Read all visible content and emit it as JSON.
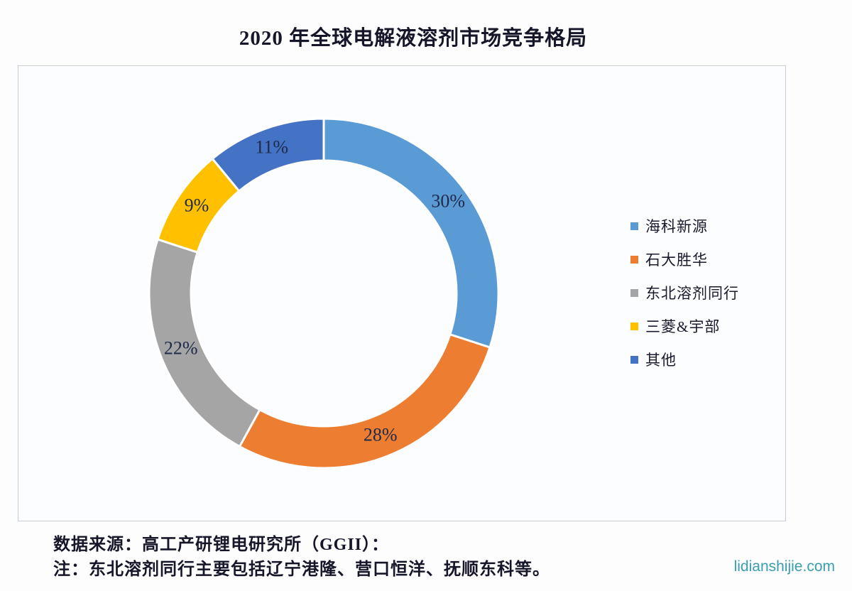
{
  "title": "2020 年全球电解液溶剂市场竞争格局",
  "chart_data": {
    "type": "pie",
    "subtype": "donut",
    "title": "2020 年全球电解液溶剂市场竞争格局",
    "categories": [
      "海科新源",
      "石大胜华",
      "东北溶剂同行",
      "三菱&宇部",
      "其他"
    ],
    "values": [
      30,
      28,
      22,
      9,
      11
    ],
    "unit": "percent",
    "labels": [
      "30%",
      "28%",
      "22%",
      "9%",
      "11%"
    ],
    "colors": [
      "#5B9BD5",
      "#ED7D31",
      "#A5A5A5",
      "#FFC000",
      "#4472C4"
    ],
    "label_color": "#1F2A4A",
    "slice_border_color": "#FFFFFF",
    "start_angle_deg": 0,
    "direction": "clockwise",
    "donut_hole_ratio": 0.76,
    "legend_position": "right",
    "grid": false
  },
  "footer": {
    "source_line": "数据来源：高工产研锂电研究所（GGII）：",
    "note_line": "注：东北溶剂同行主要包括辽宁港隆、营口恒洋、抚顺东科等。",
    "watermark": "lidianshijie.com",
    "watermark_color": "#3A9DB1"
  }
}
